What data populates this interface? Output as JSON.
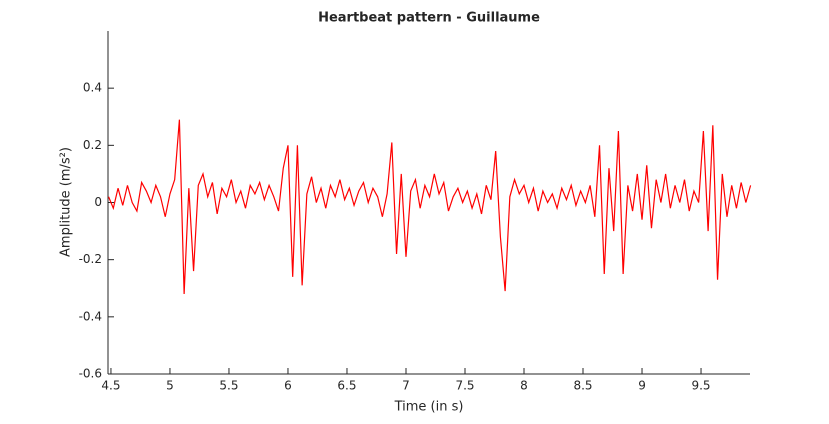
{
  "chart_data": {
    "type": "line",
    "title": "Heartbeat pattern - Guillaume",
    "x_label": "Time (in s)",
    "y_label": "Amplitude (m/s²)",
    "x": [
      4.48,
      4.52,
      4.56,
      4.6,
      4.64,
      4.68,
      4.72,
      4.76,
      4.8,
      4.84,
      4.88,
      4.92,
      4.96,
      5.0,
      5.04,
      5.08,
      5.12,
      5.16,
      5.2,
      5.24,
      5.28,
      5.32,
      5.36,
      5.4,
      5.44,
      5.48,
      5.52,
      5.56,
      5.6,
      5.64,
      5.68,
      5.72,
      5.76,
      5.8,
      5.84,
      5.88,
      5.92,
      5.96,
      6.0,
      6.04,
      6.08,
      6.12,
      6.16,
      6.2,
      6.24,
      6.28,
      6.32,
      6.36,
      6.4,
      6.44,
      6.48,
      6.52,
      6.56,
      6.6,
      6.64,
      6.68,
      6.72,
      6.76,
      6.8,
      6.84,
      6.88,
      6.92,
      6.96,
      7.0,
      7.04,
      7.08,
      7.12,
      7.16,
      7.2,
      7.24,
      7.28,
      7.32,
      7.36,
      7.4,
      7.44,
      7.48,
      7.52,
      7.56,
      7.6,
      7.64,
      7.68,
      7.72,
      7.76,
      7.8,
      7.84,
      7.88,
      7.92,
      7.96,
      8.0,
      8.04,
      8.08,
      8.12,
      8.16,
      8.2,
      8.24,
      8.28,
      8.32,
      8.36,
      8.4,
      8.44,
      8.48,
      8.52,
      8.56,
      8.6,
      8.64,
      8.68,
      8.72,
      8.76,
      8.8,
      8.84,
      8.88,
      8.92,
      8.96,
      9.0,
      9.04,
      9.08,
      9.12,
      9.16,
      9.2,
      9.24,
      9.28,
      9.32,
      9.36,
      9.4,
      9.44,
      9.48,
      9.52,
      9.56,
      9.6,
      9.64,
      9.68,
      9.72,
      9.76,
      9.8,
      9.84,
      9.88,
      9.92
    ],
    "series": [
      {
        "name": "Amplitude",
        "color": "#ff0000",
        "values": [
          0.02,
          -0.02,
          0.05,
          -0.01,
          0.06,
          0.0,
          -0.03,
          0.07,
          0.04,
          0.0,
          0.06,
          0.02,
          -0.05,
          0.03,
          0.08,
          0.29,
          -0.32,
          0.05,
          -0.24,
          0.06,
          0.1,
          0.02,
          0.07,
          -0.04,
          0.05,
          0.02,
          0.08,
          0.0,
          0.04,
          -0.02,
          0.06,
          0.03,
          0.07,
          0.01,
          0.06,
          0.02,
          -0.03,
          0.12,
          0.2,
          -0.26,
          0.2,
          -0.29,
          0.03,
          0.09,
          0.0,
          0.05,
          -0.02,
          0.06,
          0.02,
          0.08,
          0.01,
          0.05,
          -0.01,
          0.04,
          0.07,
          0.0,
          0.05,
          0.02,
          -0.05,
          0.03,
          0.21,
          -0.18,
          0.1,
          -0.19,
          0.04,
          0.08,
          -0.02,
          0.06,
          0.02,
          0.1,
          0.03,
          0.07,
          -0.03,
          0.02,
          0.05,
          0.0,
          0.04,
          -0.02,
          0.03,
          -0.04,
          0.06,
          0.01,
          0.18,
          -0.12,
          -0.31,
          0.02,
          0.08,
          0.03,
          0.06,
          0.0,
          0.05,
          -0.03,
          0.04,
          0.0,
          0.03,
          -0.02,
          0.05,
          0.01,
          0.06,
          -0.01,
          0.04,
          0.0,
          0.06,
          -0.05,
          0.2,
          -0.25,
          0.12,
          -0.1,
          0.25,
          -0.25,
          0.06,
          -0.03,
          0.1,
          -0.06,
          0.13,
          -0.09,
          0.08,
          0.0,
          0.1,
          -0.02,
          0.06,
          0.0,
          0.08,
          -0.03,
          0.04,
          0.0,
          0.25,
          -0.1,
          0.27,
          -0.27,
          0.1,
          -0.05,
          0.06,
          -0.02,
          0.07,
          0.0,
          0.06
        ]
      }
    ],
    "xlim": [
      4.475,
      9.915
    ],
    "xticks": [
      4.5,
      5,
      5.5,
      6,
      6.5,
      7,
      7.5,
      8,
      8.5,
      9,
      9.5
    ],
    "ylim": [
      -0.6,
      0.6
    ],
    "yticks": [
      -0.6,
      -0.4,
      -0.2,
      0,
      0.2,
      0.4
    ]
  }
}
